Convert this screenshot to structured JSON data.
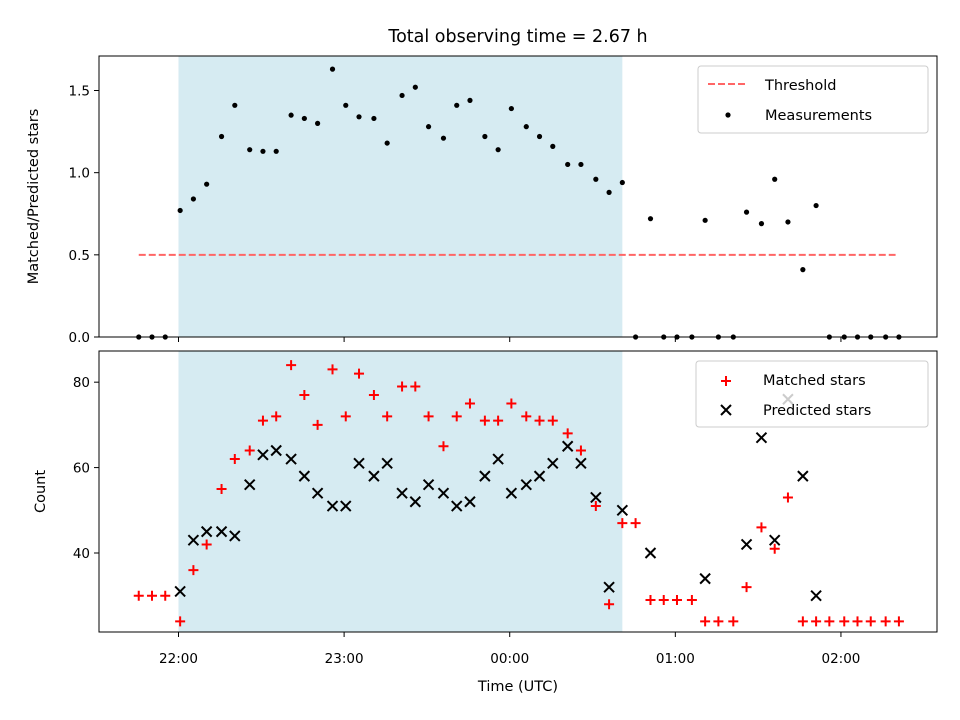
{
  "title": "Total observing time = 2.67 h",
  "xlabel": "Time (UTC)",
  "x_ticks": [
    {
      "t": 22.0,
      "label": "22:00"
    },
    {
      "t": 23.0,
      "label": "23:00"
    },
    {
      "t": 24.0,
      "label": "00:00"
    },
    {
      "t": 25.0,
      "label": "01:00"
    },
    {
      "t": 26.0,
      "label": "02:00"
    }
  ],
  "colors": {
    "shade": "#add8e6",
    "threshold": "#ff6666",
    "matched": "#ff0000",
    "predicted": "#000000",
    "measurement": "#000000"
  },
  "chart_data": [
    {
      "type": "scatter",
      "panel": "top",
      "ylabel": "Matched/Predicted stars",
      "xlim": [
        21.52,
        26.58
      ],
      "ylim": [
        0.0,
        1.71
      ],
      "y_ticks": [
        0.0,
        0.5,
        1.0,
        1.5
      ],
      "y_tick_labels": [
        "0.0",
        "0.5",
        "1.0",
        "1.5"
      ],
      "shaded_region": [
        22.0,
        24.68
      ],
      "legend_position": "upper right",
      "threshold": {
        "name": "Threshold",
        "y": 0.5,
        "x_range": [
          21.76,
          26.33
        ],
        "style": "dashed"
      },
      "series": [
        {
          "name": "Measurements",
          "marker": "dot",
          "points": [
            [
              21.76,
              0.0
            ],
            [
              21.84,
              0.0
            ],
            [
              21.92,
              0.0
            ],
            [
              22.01,
              0.77
            ],
            [
              22.09,
              0.84
            ],
            [
              22.17,
              0.93
            ],
            [
              22.26,
              1.22
            ],
            [
              22.34,
              1.41
            ],
            [
              22.43,
              1.14
            ],
            [
              22.51,
              1.13
            ],
            [
              22.59,
              1.13
            ],
            [
              22.68,
              1.35
            ],
            [
              22.76,
              1.33
            ],
            [
              22.84,
              1.3
            ],
            [
              22.93,
              1.63
            ],
            [
              23.01,
              1.41
            ],
            [
              23.09,
              1.34
            ],
            [
              23.18,
              1.33
            ],
            [
              23.26,
              1.18
            ],
            [
              23.35,
              1.47
            ],
            [
              23.43,
              1.52
            ],
            [
              23.51,
              1.28
            ],
            [
              23.6,
              1.21
            ],
            [
              23.68,
              1.41
            ],
            [
              23.76,
              1.44
            ],
            [
              23.85,
              1.22
            ],
            [
              23.93,
              1.14
            ],
            [
              24.01,
              1.39
            ],
            [
              24.1,
              1.28
            ],
            [
              24.18,
              1.22
            ],
            [
              24.26,
              1.16
            ],
            [
              24.35,
              1.05
            ],
            [
              24.43,
              1.05
            ],
            [
              24.52,
              0.96
            ],
            [
              24.6,
              0.88
            ],
            [
              24.68,
              0.94
            ],
            [
              24.76,
              0.0
            ],
            [
              24.85,
              0.72
            ],
            [
              24.93,
              0.0
            ],
            [
              25.01,
              0.0
            ],
            [
              25.1,
              0.0
            ],
            [
              25.18,
              0.71
            ],
            [
              25.26,
              0.0
            ],
            [
              25.35,
              0.0
            ],
            [
              25.43,
              0.76
            ],
            [
              25.52,
              0.69
            ],
            [
              25.6,
              0.96
            ],
            [
              25.68,
              0.7
            ],
            [
              25.77,
              0.41
            ],
            [
              25.85,
              0.8
            ],
            [
              25.93,
              0.0
            ],
            [
              26.02,
              0.0
            ],
            [
              26.1,
              0.0
            ],
            [
              26.18,
              0.0
            ],
            [
              26.27,
              0.0
            ],
            [
              26.35,
              0.0
            ]
          ]
        }
      ]
    },
    {
      "type": "scatter",
      "panel": "bottom",
      "ylabel": "Count",
      "xlim": [
        21.52,
        26.58
      ],
      "ylim": [
        21.5,
        87.3
      ],
      "y_ticks": [
        40,
        60,
        80
      ],
      "y_tick_labels": [
        "40",
        "60",
        "80"
      ],
      "shaded_region": [
        22.0,
        24.68
      ],
      "legend_position": "upper right",
      "series": [
        {
          "name": "Matched stars",
          "marker": "plus",
          "points": [
            [
              21.76,
              30
            ],
            [
              21.84,
              30
            ],
            [
              21.92,
              30
            ],
            [
              22.01,
              24
            ],
            [
              22.09,
              36
            ],
            [
              22.17,
              42
            ],
            [
              22.26,
              55
            ],
            [
              22.34,
              62
            ],
            [
              22.43,
              64
            ],
            [
              22.51,
              71
            ],
            [
              22.59,
              72
            ],
            [
              22.68,
              84
            ],
            [
              22.76,
              77
            ],
            [
              22.84,
              70
            ],
            [
              22.93,
              83
            ],
            [
              23.01,
              72
            ],
            [
              23.09,
              82
            ],
            [
              23.18,
              77
            ],
            [
              23.26,
              72
            ],
            [
              23.35,
              79
            ],
            [
              23.43,
              79
            ],
            [
              23.51,
              72
            ],
            [
              23.6,
              65
            ],
            [
              23.68,
              72
            ],
            [
              23.76,
              75
            ],
            [
              23.85,
              71
            ],
            [
              23.93,
              71
            ],
            [
              24.01,
              75
            ],
            [
              24.1,
              72
            ],
            [
              24.18,
              71
            ],
            [
              24.26,
              71
            ],
            [
              24.35,
              68
            ],
            [
              24.43,
              64
            ],
            [
              24.52,
              51
            ],
            [
              24.6,
              28
            ],
            [
              24.68,
              47
            ],
            [
              24.76,
              47
            ],
            [
              24.85,
              29
            ],
            [
              24.93,
              29
            ],
            [
              25.01,
              29
            ],
            [
              25.1,
              29
            ],
            [
              25.18,
              24
            ],
            [
              25.26,
              24
            ],
            [
              25.35,
              24
            ],
            [
              25.43,
              32
            ],
            [
              25.52,
              46
            ],
            [
              25.6,
              41
            ],
            [
              25.68,
              53
            ],
            [
              25.77,
              24
            ],
            [
              25.85,
              24
            ],
            [
              25.93,
              24
            ],
            [
              26.02,
              24
            ],
            [
              26.1,
              24
            ],
            [
              26.18,
              24
            ],
            [
              26.27,
              24
            ],
            [
              26.35,
              24
            ]
          ]
        },
        {
          "name": "Predicted stars",
          "marker": "x",
          "points": [
            [
              22.01,
              31
            ],
            [
              22.09,
              43
            ],
            [
              22.17,
              45
            ],
            [
              22.26,
              45
            ],
            [
              22.34,
              44
            ],
            [
              22.43,
              56
            ],
            [
              22.51,
              63
            ],
            [
              22.59,
              64
            ],
            [
              22.68,
              62
            ],
            [
              22.76,
              58
            ],
            [
              22.84,
              54
            ],
            [
              22.93,
              51
            ],
            [
              23.01,
              51
            ],
            [
              23.09,
              61
            ],
            [
              23.18,
              58
            ],
            [
              23.26,
              61
            ],
            [
              23.35,
              54
            ],
            [
              23.43,
              52
            ],
            [
              23.51,
              56
            ],
            [
              23.6,
              54
            ],
            [
              23.68,
              51
            ],
            [
              23.76,
              52
            ],
            [
              23.85,
              58
            ],
            [
              23.93,
              62
            ],
            [
              24.01,
              54
            ],
            [
              24.1,
              56
            ],
            [
              24.18,
              58
            ],
            [
              24.26,
              61
            ],
            [
              24.35,
              65
            ],
            [
              24.43,
              61
            ],
            [
              24.52,
              53
            ],
            [
              24.6,
              32
            ],
            [
              24.68,
              50
            ],
            [
              24.85,
              40
            ],
            [
              25.18,
              34
            ],
            [
              25.43,
              42
            ],
            [
              25.52,
              67
            ],
            [
              25.6,
              43
            ],
            [
              25.68,
              76
            ],
            [
              25.77,
              58
            ],
            [
              25.85,
              30
            ]
          ]
        }
      ]
    }
  ]
}
